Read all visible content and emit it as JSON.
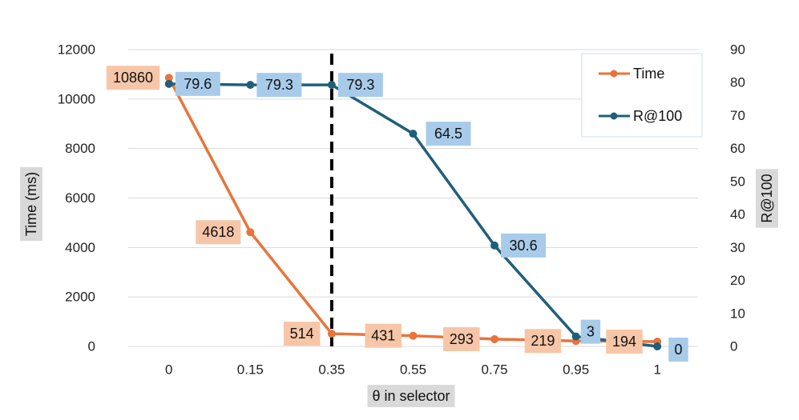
{
  "chart_data": {
    "type": "line",
    "categories": [
      "0",
      "0.15",
      "0.35",
      "0.55",
      "0.75",
      "0.95",
      "1"
    ],
    "series": [
      {
        "name": "Time",
        "axis": "left",
        "color": "#E8743B",
        "label_bg": "#F7C6A8",
        "values": [
          10860,
          4618,
          514,
          431,
          293,
          219,
          194
        ]
      },
      {
        "name": "R@100",
        "axis": "right",
        "color": "#1F5F7A",
        "label_bg": "#A8CBEA",
        "values": [
          79.6,
          79.3,
          79.3,
          64.5,
          30.6,
          3,
          0
        ]
      }
    ],
    "xlabel": "θ in selector",
    "ylabel_left": "Time (ms)",
    "ylabel_right": "R@100",
    "ylim_left": [
      0,
      12000
    ],
    "yticks_left": [
      "0",
      "2000",
      "4000",
      "6000",
      "8000",
      "10000",
      "12000"
    ],
    "ylim_right": [
      0,
      90
    ],
    "yticks_right": [
      "0",
      "10",
      "20",
      "30",
      "40",
      "50",
      "60",
      "70",
      "80",
      "90"
    ],
    "grid": "horizontal",
    "legend": "top-right",
    "vline_category": "0.35",
    "axis_label_bg": "#D9D9D9"
  }
}
